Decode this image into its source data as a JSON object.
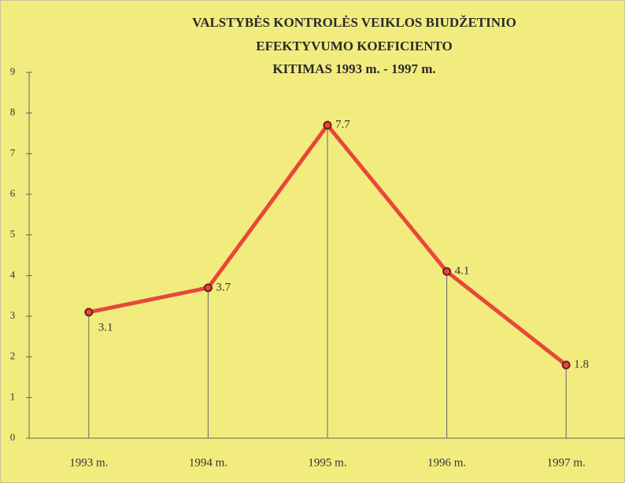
{
  "chart_data": {
    "type": "line",
    "title": [
      "VALSTYBĖS KONTROLĖS VEIKLOS BIUDŽETINIO",
      "EFEKTYVUMO KOEFICIENTO",
      "KITIMAS 1993 m. - 1997 m."
    ],
    "categories": [
      "1993 m.",
      "1994 m.",
      "1995 m.",
      "1996 m.",
      "1997 m."
    ],
    "series": [
      {
        "color": "#e8473a",
        "values": [
          3.1,
          3.7,
          7.7,
          4.1,
          1.8
        ]
      }
    ],
    "ylim": [
      0,
      9
    ],
    "yticks": [
      0,
      1,
      2,
      3,
      4,
      5,
      6,
      7,
      8,
      9
    ],
    "grid": false
  }
}
